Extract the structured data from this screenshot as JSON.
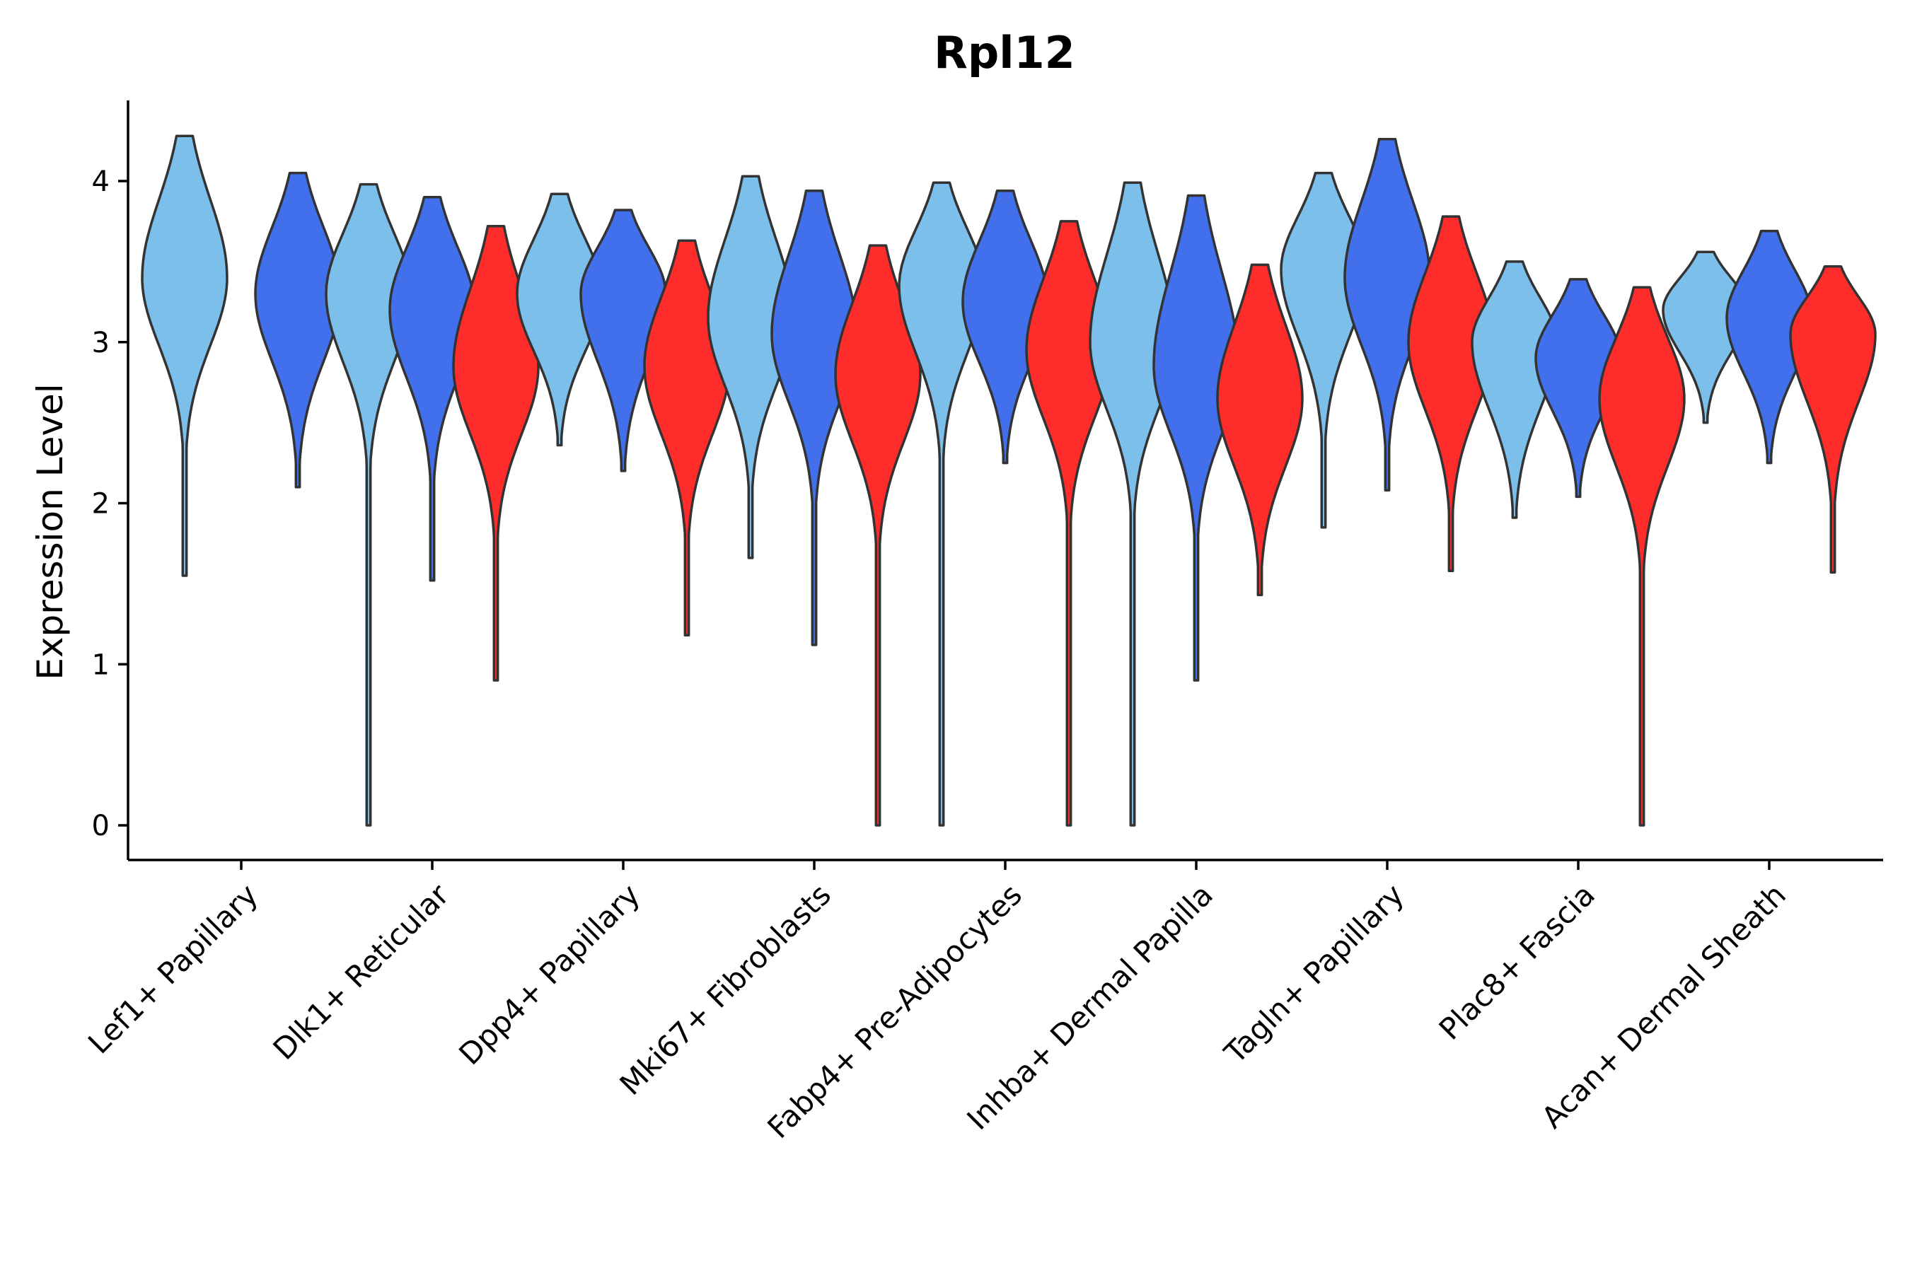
{
  "chart_data": {
    "type": "violin",
    "title": "Rpl12",
    "ylabel": "Expression Level",
    "xlabel": "",
    "ylim": [
      -0.22,
      4.5
    ],
    "yticks": [
      0,
      1,
      2,
      3,
      4
    ],
    "categories": [
      "Lef1+ Papillary",
      "Dlk1+ Reticular",
      "Dpp4+ Papillary",
      "Mki67+ Fibroblasts",
      "Fabp4+ Pre-Adipocytes",
      "Inhba+ Dermal Papilla",
      "Tagln+ Papillary",
      "Plac8+ Fascia",
      "Acan+ Dermal Sheath"
    ],
    "colors": [
      "#7DBFEB",
      "#4270EC",
      "#FF2C2C"
    ],
    "violins": [
      {
        "category": 0,
        "group": 0,
        "min": 1.55,
        "max": 4.28,
        "mode": 3.4
      },
      {
        "category": 0,
        "group": 1,
        "min": 2.1,
        "max": 4.05,
        "mode": 3.3
      },
      {
        "category": 1,
        "group": 0,
        "min": 0.0,
        "max": 3.98,
        "mode": 3.3
      },
      {
        "category": 1,
        "group": 1,
        "min": 1.52,
        "max": 3.9,
        "mode": 3.2
      },
      {
        "category": 1,
        "group": 2,
        "min": 0.9,
        "max": 3.72,
        "mode": 2.85
      },
      {
        "category": 2,
        "group": 0,
        "min": 2.36,
        "max": 3.92,
        "mode": 3.3
      },
      {
        "category": 2,
        "group": 1,
        "min": 2.2,
        "max": 3.82,
        "mode": 3.3
      },
      {
        "category": 2,
        "group": 2,
        "min": 1.18,
        "max": 3.63,
        "mode": 2.85
      },
      {
        "category": 3,
        "group": 0,
        "min": 1.66,
        "max": 4.03,
        "mode": 3.15
      },
      {
        "category": 3,
        "group": 1,
        "min": 1.12,
        "max": 3.94,
        "mode": 3.05
      },
      {
        "category": 3,
        "group": 2,
        "min": 0.0,
        "max": 3.6,
        "mode": 2.8
      },
      {
        "category": 4,
        "group": 0,
        "min": 0.0,
        "max": 3.99,
        "mode": 3.35
      },
      {
        "category": 4,
        "group": 1,
        "min": 2.25,
        "max": 3.94,
        "mode": 3.25
      },
      {
        "category": 4,
        "group": 2,
        "min": 0.0,
        "max": 3.75,
        "mode": 2.95
      },
      {
        "category": 5,
        "group": 0,
        "min": 0.0,
        "max": 3.99,
        "mode": 3.0
      },
      {
        "category": 5,
        "group": 1,
        "min": 0.9,
        "max": 3.91,
        "mode": 2.85
      },
      {
        "category": 5,
        "group": 2,
        "min": 1.43,
        "max": 3.48,
        "mode": 2.65
      },
      {
        "category": 6,
        "group": 0,
        "min": 1.85,
        "max": 4.05,
        "mode": 3.45
      },
      {
        "category": 6,
        "group": 1,
        "min": 2.08,
        "max": 4.26,
        "mode": 3.4
      },
      {
        "category": 6,
        "group": 2,
        "min": 1.58,
        "max": 3.78,
        "mode": 3.0
      },
      {
        "category": 7,
        "group": 0,
        "min": 1.91,
        "max": 3.5,
        "mode": 3.0
      },
      {
        "category": 7,
        "group": 1,
        "min": 2.04,
        "max": 3.39,
        "mode": 2.9
      },
      {
        "category": 7,
        "group": 2,
        "min": 0.0,
        "max": 3.34,
        "mode": 2.65
      },
      {
        "category": 8,
        "group": 0,
        "min": 2.5,
        "max": 3.56,
        "mode": 3.2
      },
      {
        "category": 8,
        "group": 1,
        "min": 2.25,
        "max": 3.69,
        "mode": 3.15
      },
      {
        "category": 8,
        "group": 2,
        "min": 1.57,
        "max": 3.47,
        "mode": 3.05
      }
    ]
  }
}
